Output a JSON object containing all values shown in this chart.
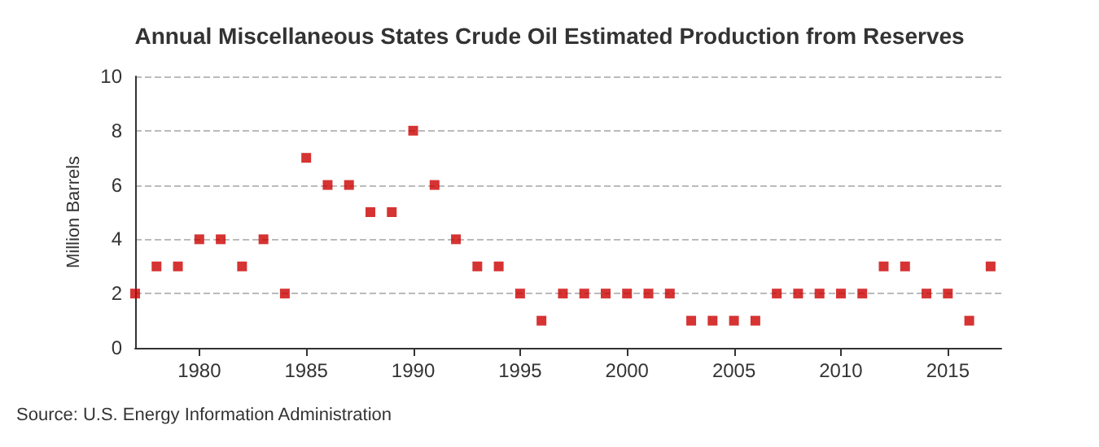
{
  "chart_data": {
    "type": "scatter",
    "title": "Annual Miscellaneous States Crude Oil Estimated Production from Reserves",
    "ylabel": "Million Barrels",
    "annotations": [
      "Source: U.S. Energy Information Administration"
    ],
    "x": [
      1977,
      1978,
      1979,
      1980,
      1981,
      1982,
      1983,
      1984,
      1985,
      1986,
      1987,
      1988,
      1989,
      1990,
      1991,
      1992,
      1993,
      1994,
      1995,
      1996,
      1997,
      1998,
      1999,
      2000,
      2001,
      2002,
      2003,
      2004,
      2005,
      2006,
      2007,
      2008,
      2009,
      2010,
      2011,
      2012,
      2013,
      2014,
      2015,
      2016,
      2017
    ],
    "series": [
      {
        "color": "#cc0000",
        "values": [
          2,
          3,
          3,
          4,
          4,
          3,
          4,
          2,
          7,
          6,
          6,
          5,
          5,
          8,
          6,
          4,
          3,
          3,
          2,
          1,
          2,
          2,
          2,
          2,
          2,
          2,
          1,
          1,
          1,
          1,
          2,
          2,
          2,
          2,
          2,
          3,
          3,
          2,
          2,
          1,
          3
        ]
      }
    ],
    "xlim": [
      1977,
      2017.5
    ],
    "xticks": [
      1980,
      1985,
      1990,
      1995,
      2000,
      2005,
      2010,
      2015
    ],
    "ylim": [
      0,
      10
    ],
    "yticks": [
      0,
      2,
      4,
      6,
      8,
      10
    ],
    "grid": "y",
    "marker": "square"
  }
}
